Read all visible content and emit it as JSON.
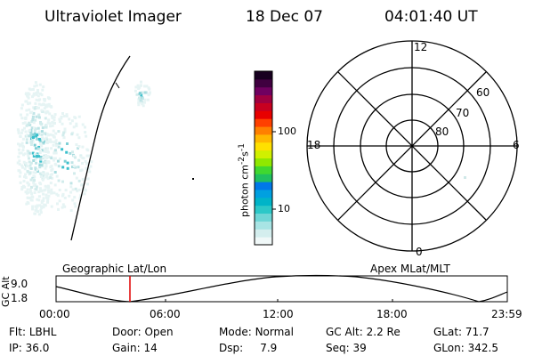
{
  "header": {
    "instrument": "Ultraviolet Imager",
    "date": "18 Dec 07",
    "time": "04:01:40 UT"
  },
  "colorbar": {
    "label": "photon cm",
    "label_sup1": "-2",
    "label_mid": "s",
    "label_sup2": "-1",
    "ticks": [
      "100",
      "10"
    ],
    "colors": [
      "#f0f8f8",
      "#d4eeee",
      "#a8e4e4",
      "#6fd6d6",
      "#2cc8c8",
      "#00b4c8",
      "#00a0e0",
      "#0078e8",
      "#20c060",
      "#40d830",
      "#90e800",
      "#d0f000",
      "#ffe000",
      "#ffb800",
      "#ff8000",
      "#ff4000",
      "#e80000",
      "#c80020",
      "#a00040",
      "#700060",
      "#400040",
      "#180020"
    ]
  },
  "polar": {
    "label_top": "12",
    "label_bottom": "0",
    "label_left": "18",
    "label_right": "6",
    "lat_labels": [
      "60",
      "70",
      "80"
    ]
  },
  "timeline": {
    "left_title": "Geographic Lat/Lon",
    "right_title": "Apex  MLat/MLT",
    "ylabel": "GC Alt",
    "y_top": "9.0",
    "y_bottom": "1.8",
    "x_ticks": [
      "00:00",
      "06:00",
      "12:00",
      "18:00",
      "23:59"
    ],
    "marker_color": "#e00000"
  },
  "info": {
    "row1": [
      {
        "key": "Flt:",
        "value": "LBHL"
      },
      {
        "key": "Door:",
        "value": "Open"
      },
      {
        "key": "Mode:",
        "value": "Normal"
      },
      {
        "key": "GC Alt:",
        "value": "2.2 Re"
      },
      {
        "key": "GLat:",
        "value": "71.7"
      }
    ],
    "row2": [
      {
        "key": "IP:",
        "value": "36.0"
      },
      {
        "key": "Gain:",
        "value": "14"
      },
      {
        "key": "Dsp:",
        "value": "7.9"
      },
      {
        "key": "Seq:",
        "value": "39"
      },
      {
        "key": "GLon:",
        "value": "342.5"
      }
    ]
  }
}
